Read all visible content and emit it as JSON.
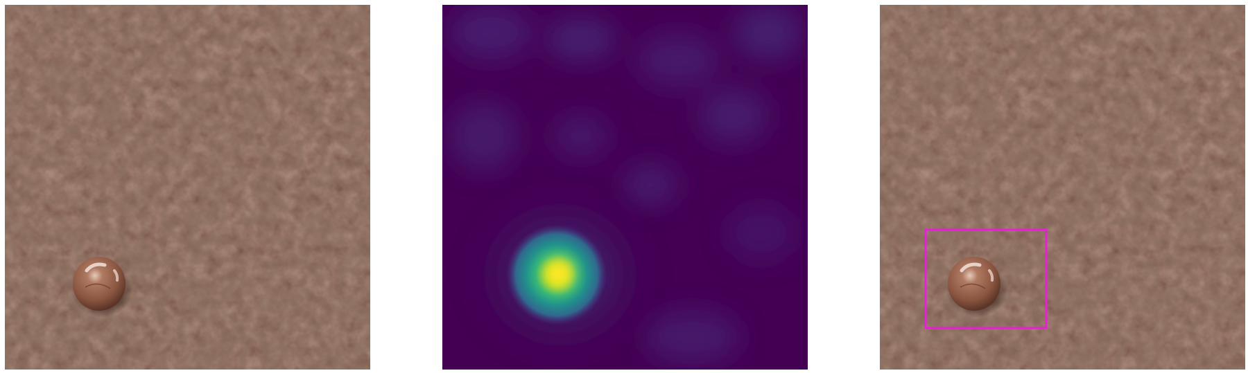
{
  "figure": {
    "panels": [
      {
        "kind": "original-image",
        "subject": "leather-texture",
        "defect": "drop"
      },
      {
        "kind": "anomaly-heatmap",
        "colormap": "viridis"
      },
      {
        "kind": "detection-overlay",
        "subject": "leather-texture",
        "box_color": "#e81fd9"
      }
    ]
  },
  "colors": {
    "leather_base": "#6b4436",
    "leather_crease": "#3e261d",
    "leather_highlight": "#9a6a56",
    "drop_body": "#8a5540",
    "drop_highlight": "#e6c9bc",
    "heatmap_low": "#440154",
    "heatmap_mid": "#21908c",
    "heatmap_high": "#fde725",
    "detection_box": "#e81fd9"
  }
}
